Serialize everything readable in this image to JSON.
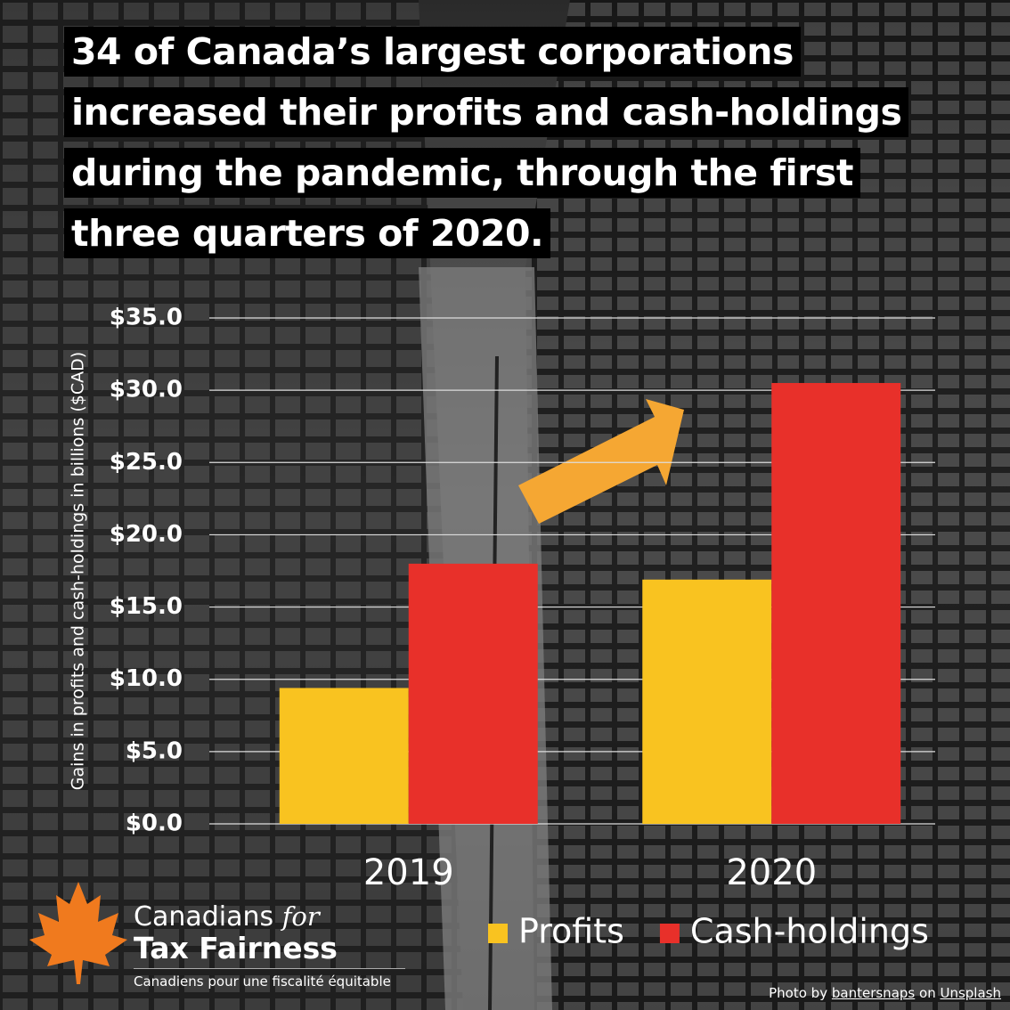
{
  "chart_data": {
    "type": "bar",
    "title": "34 of Canada’s largest corporations increased their profits and cash-holdings during the pandemic, through the first three quarters of 2020.",
    "y_label": "Gains in profits and cash-holdings in billions ($CAD)",
    "categories": [
      "2019",
      "2020"
    ],
    "series": [
      {
        "name": "Profits",
        "color": "#f9c320",
        "values": [
          9.4,
          16.9
        ]
      },
      {
        "name": "Cash-holdings",
        "color": "#e8302a",
        "values": [
          18.0,
          30.5
        ]
      }
    ],
    "ylim": [
      0,
      35
    ],
    "yticks": [
      {
        "value": 0,
        "label": "$0.0"
      },
      {
        "value": 5,
        "label": "$5.0"
      },
      {
        "value": 10,
        "label": "$10.0"
      },
      {
        "value": 15,
        "label": "$15.0"
      },
      {
        "value": 20,
        "label": "$20.0"
      },
      {
        "value": 25,
        "label": "$25.0"
      },
      {
        "value": 30,
        "label": "$30.0"
      },
      {
        "value": 35,
        "label": "$35.0"
      }
    ],
    "grid": true,
    "legend": "bottom-right"
  },
  "branding": {
    "name_line1": "Canadians",
    "name_italic": "for",
    "name_line2": "Tax Fairness",
    "tagline": "Canadiens pour une fiscalité équitable"
  },
  "credit": {
    "prefix": "Photo by",
    "author": "bantersnaps",
    "middle": "on",
    "source": "Unsplash"
  }
}
